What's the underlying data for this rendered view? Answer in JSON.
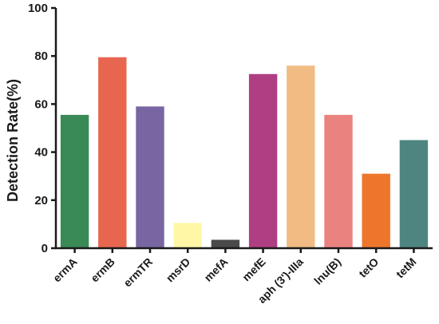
{
  "chart_data": {
    "type": "bar",
    "title": "",
    "xlabel": "",
    "ylabel": "Detection Rate(%)",
    "ylim": [
      0,
      100
    ],
    "yticks": [
      0,
      20,
      40,
      60,
      80,
      100
    ],
    "grid": false,
    "legend": "none",
    "categories": [
      "ermA",
      "ermB",
      "ermTR",
      "msrD",
      "mefA",
      "mefE",
      "aph (3')-IIIa",
      "lnu(B)",
      "tetO",
      "tetM"
    ],
    "values": [
      55.5,
      79.5,
      59,
      10.5,
      3.5,
      72.5,
      76,
      55.5,
      31,
      45
    ],
    "colors": [
      "#3a8a57",
      "#e8664f",
      "#7866a2",
      "#fff7a6",
      "#4a4a4a",
      "#b03e83",
      "#f0bc84",
      "#ea8380",
      "#ee762c",
      "#4f8580"
    ]
  }
}
